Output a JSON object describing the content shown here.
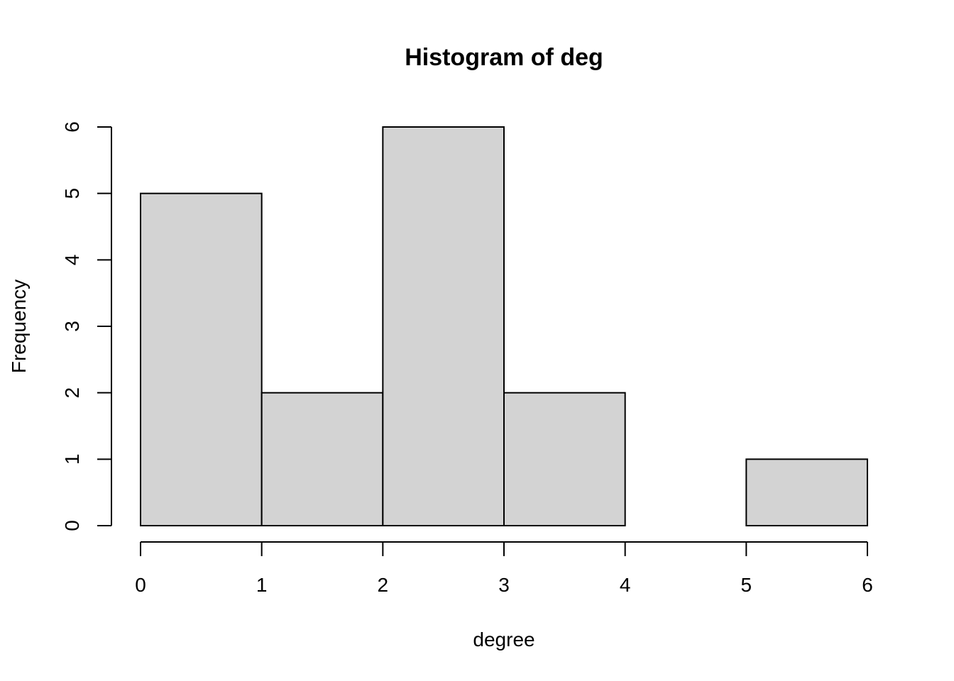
{
  "chart_data": {
    "type": "bar",
    "title": "Histogram of deg",
    "xlabel": "degree",
    "ylabel": "Frequency",
    "bins": [
      {
        "from": 0,
        "to": 1,
        "value": 5
      },
      {
        "from": 1,
        "to": 2,
        "value": 2
      },
      {
        "from": 2,
        "to": 3,
        "value": 6
      },
      {
        "from": 3,
        "to": 4,
        "value": 2
      },
      {
        "from": 4,
        "to": 5,
        "value": 0
      },
      {
        "from": 5,
        "to": 6,
        "value": 1
      }
    ],
    "xlim": [
      0,
      6
    ],
    "ylim": [
      0,
      6
    ],
    "xticks": [
      "0",
      "1",
      "2",
      "3",
      "4",
      "5",
      "6"
    ],
    "yticks": [
      "0",
      "1",
      "2",
      "3",
      "4",
      "5",
      "6"
    ],
    "bar_color": "#d3d3d3",
    "grid": false
  }
}
